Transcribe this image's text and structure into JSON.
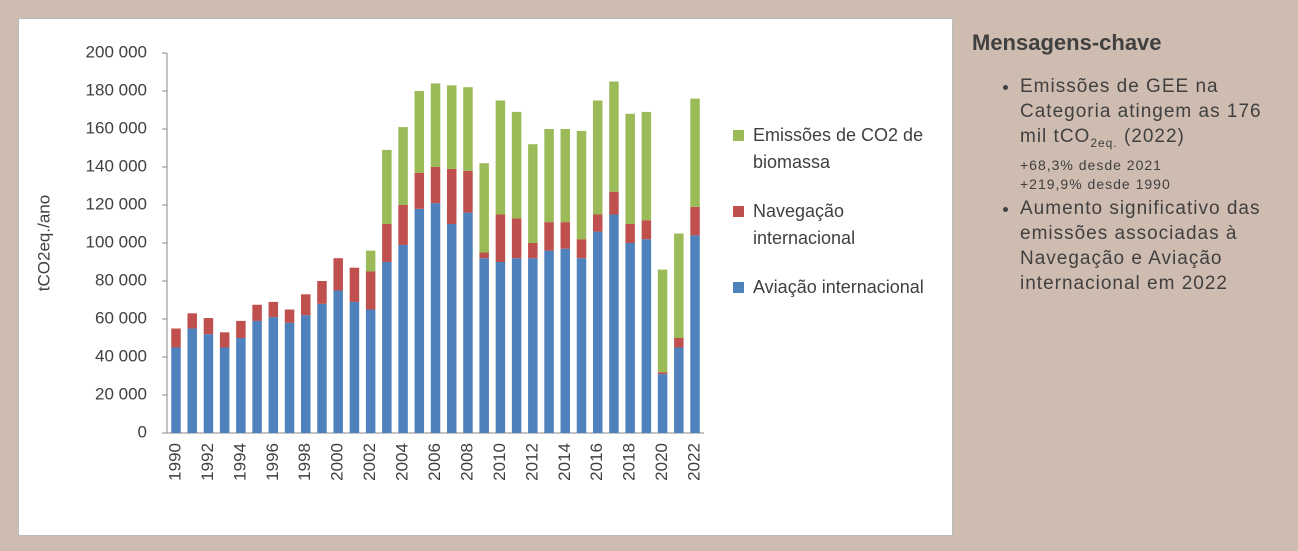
{
  "chart_data": {
    "type": "stacked_bar",
    "ylabel": "tCO2eq./ano",
    "categories": [
      "1990",
      null,
      "1992",
      null,
      "1994",
      null,
      "1996",
      null,
      "1998",
      null,
      "2000",
      null,
      "2002",
      null,
      "2004",
      null,
      "2006",
      null,
      "2008",
      null,
      "2010",
      null,
      "2012",
      null,
      "2014",
      null,
      "2016",
      null,
      "2018",
      null,
      "2020",
      null,
      "2022"
    ],
    "series": [
      {
        "name": "Aviação internacional",
        "color": "#4f81bd",
        "values": [
          45000,
          55000,
          52000,
          45000,
          50000,
          59000,
          61000,
          58000,
          62000,
          68000,
          75000,
          69000,
          65000,
          90000,
          99000,
          118000,
          121000,
          110000,
          116000,
          92000,
          90000,
          92000,
          92000,
          96000,
          97000,
          92000,
          106000,
          115000,
          100000,
          102000,
          31000,
          45000,
          104000
        ]
      },
      {
        "name": "Navegação internacional",
        "color": "#c0504d",
        "values": [
          10000,
          8000,
          8500,
          8000,
          9000,
          8500,
          8000,
          7000,
          11000,
          12000,
          17000,
          18000,
          20000,
          20000,
          21000,
          19000,
          19000,
          29000,
          22000,
          3000,
          25000,
          21000,
          8000,
          15000,
          14000,
          10000,
          9000,
          12000,
          10000,
          10000,
          1000,
          5000,
          15000
        ]
      },
      {
        "name": "Emissões de CO2 de biomassa",
        "color": "#9bbb59",
        "values": [
          0,
          0,
          0,
          0,
          0,
          0,
          0,
          0,
          0,
          0,
          0,
          0,
          11000,
          39000,
          41000,
          43000,
          44000,
          44000,
          44000,
          47000,
          60000,
          56000,
          52000,
          49000,
          49000,
          57000,
          60000,
          58000,
          58000,
          57000,
          54000,
          55000,
          57000
        ]
      }
    ],
    "ylim": [
      0,
      200000
    ],
    "yticks": [
      0,
      {
        "value": 20000,
        "label": "20 000"
      },
      {
        "value": 40000,
        "label": "40 000"
      },
      {
        "value": 60000,
        "label": "60 000"
      },
      {
        "value": 80000,
        "label": "80 000"
      },
      {
        "value": 100000,
        "label": "100 000"
      },
      {
        "value": 120000,
        "label": "120 000"
      },
      {
        "value": 140000,
        "label": "140 000"
      },
      {
        "value": 160000,
        "label": "160 000"
      },
      {
        "value": 180000,
        "label": "180 000"
      },
      {
        "value": 200000,
        "label": "200 000"
      }
    ],
    "legend": "right"
  },
  "panel": {
    "title": "Mensagens-chave",
    "bullets": [
      {
        "text": "Emissões de GEE na Categoria atingem as 176 mil tCO",
        "subscript": "2eq.",
        "text_after": " (2022)",
        "notes": [
          "+68,3% desde 2021",
          "+219,9% desde 1990"
        ]
      },
      {
        "text": "Aumento significativo das emissões associadas à Navegação e Aviação internacional em 2022"
      }
    ]
  }
}
